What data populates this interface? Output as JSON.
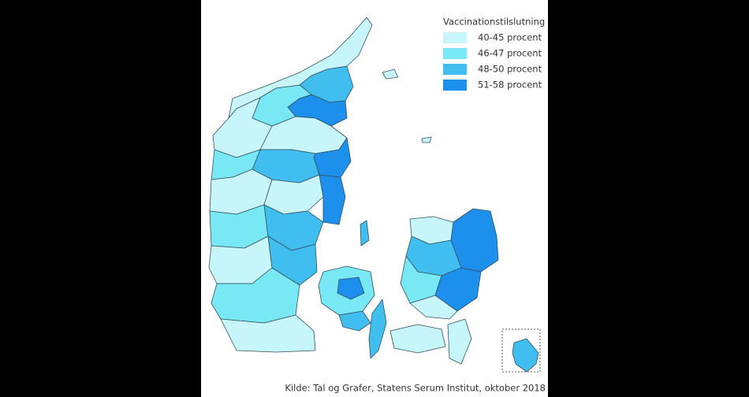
{
  "legend": {
    "title": "Vaccinationstilslutning",
    "items": [
      {
        "label": "40-45 procent",
        "color": "#c6f6f9"
      },
      {
        "label": "46-47 procent",
        "color": "#78e8f5"
      },
      {
        "label": "48-50 procent",
        "color": "#3fbeef"
      },
      {
        "label": "51-58 procent",
        "color": "#1d8fec"
      }
    ]
  },
  "source": "Kilde: Tal og Grafer, Statens Serum Institut, oktober 2018"
}
